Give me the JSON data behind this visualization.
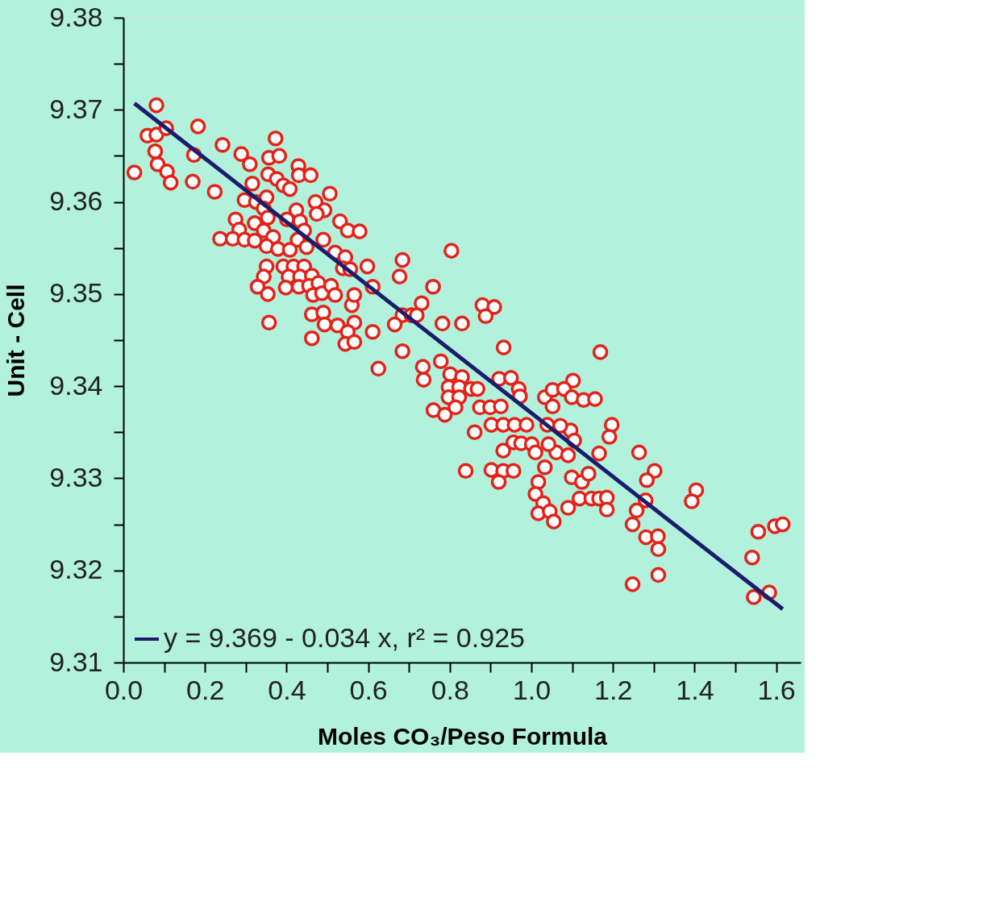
{
  "chart_data": {
    "type": "scatter",
    "xlabel": "Moles CO₃/Peso Formula",
    "ylabel": "Unit - Cell",
    "xlim": [
      0,
      1.66
    ],
    "ylim": [
      9.31,
      9.38
    ],
    "xticks": [
      {
        "value": 0,
        "label": "0.0"
      },
      {
        "value": 0.1,
        "label": null
      },
      0.2,
      {
        "value": 0.3,
        "label": null
      },
      0.4,
      {
        "value": 0.5,
        "label": null
      },
      0.6,
      {
        "value": 0.7,
        "label": null
      },
      0.8,
      {
        "value": 0.9,
        "label": null
      },
      {
        "value": 1,
        "label": "1.0"
      },
      {
        "value": 1.1,
        "label": null
      },
      1.2,
      {
        "value": 1.3,
        "label": null
      },
      1.4,
      {
        "value": 1.5,
        "label": null
      },
      1.6
    ],
    "yticks": [
      9.31,
      {
        "value": 9.315,
        "label": null
      },
      9.32,
      {
        "value": 9.325,
        "label": null
      },
      9.33,
      {
        "value": 9.335,
        "label": null
      },
      9.34,
      {
        "value": 9.345,
        "label": null
      },
      9.35,
      {
        "value": 9.355,
        "label": null
      },
      9.36,
      {
        "value": 9.365,
        "label": null
      },
      9.37,
      {
        "value": 9.375,
        "label": null
      },
      9.38
    ],
    "grid": false,
    "legend": "bottom left",
    "series": [
      {
        "marker": "circle",
        "color": "#e32219",
        "x": [
          0.081,
          0.027,
          0.059,
          0.081,
          0.105,
          0.078,
          0.084,
          0.107,
          0.116,
          0.17,
          0.173,
          0.183,
          0.243,
          0.224,
          0.289,
          0.31,
          0.316,
          0.373,
          0.357,
          0.382,
          0.355,
          0.376,
          0.392,
          0.408,
          0.429,
          0.43,
          0.459,
          0.506,
          0.297,
          0.325,
          0.351,
          0.344,
          0.275,
          0.284,
          0.237,
          0.268,
          0.297,
          0.322,
          0.322,
          0.344,
          0.354,
          0.367,
          0.351,
          0.379,
          0.408,
          0.401,
          0.424,
          0.433,
          0.443,
          0.427,
          0.449,
          0.471,
          0.493,
          0.474,
          0.531,
          0.55,
          0.579,
          0.49,
          0.519,
          0.544,
          0.538,
          0.556,
          0.598,
          0.611,
          0.351,
          0.344,
          0.329,
          0.354,
          0.392,
          0.417,
          0.443,
          0.405,
          0.433,
          0.462,
          0.398,
          0.43,
          0.455,
          0.478,
          0.465,
          0.487,
          0.509,
          0.519,
          0.56,
          0.566,
          0.357,
          0.462,
          0.49,
          0.493,
          0.525,
          0.566,
          0.55,
          0.462,
          0.544,
          0.566,
          0.611,
          0.804,
          0.684,
          0.677,
          0.759,
          0.731,
          0.684,
          0.706,
          0.719,
          0.88,
          0.909,
          0.888,
          0.782,
          0.83,
          0.665,
          0.684,
          0.932,
          0.625,
          0.734,
          0.736,
          0.778,
          0.801,
          0.83,
          0.797,
          0.823,
          0.852,
          0.868,
          0.797,
          0.823,
          0.76,
          0.788,
          0.814,
          0.874,
          0.899,
          0.925,
          0.921,
          0.95,
          0.969,
          0.972,
          1.033,
          1.052,
          1.052,
          0.902,
          0.931,
          0.959,
          0.988,
          0.861,
          1.039,
          1.169,
          1.102,
          1.08,
          1.099,
          1.128,
          1.156,
          1.197,
          1.191,
          1.096,
          1.105,
          1.071,
          1.061,
          1.09,
          1.166,
          1.264,
          1.302,
          1.283,
          1.28,
          1.258,
          1.248,
          0.839,
          0.902,
          0.931,
          0.956,
          0.92,
          1.033,
          1.017,
          1.01,
          1.029,
          1.017,
          1.045,
          1.055,
          1.099,
          1.124,
          1.14,
          1.09,
          1.118,
          1.147,
          1.166,
          1.185,
          1.185,
          0.956,
          0.975,
          1.001,
          1.01,
          0.931,
          1.042,
          1.281,
          1.31,
          1.311,
          1.311,
          1.248,
          1.404,
          1.393,
          1.556,
          1.597,
          1.616,
          1.541,
          1.545,
          1.583
        ],
        "values": [
          9.3705,
          9.3632,
          9.3672,
          9.3673,
          9.368,
          9.3655,
          9.3641,
          9.3633,
          9.3621,
          9.3622,
          9.3651,
          9.3682,
          9.3662,
          9.3611,
          9.3652,
          9.3641,
          9.362,
          9.3669,
          9.3648,
          9.365,
          9.363,
          9.3625,
          9.3618,
          9.3614,
          9.3639,
          9.3629,
          9.3629,
          9.3609,
          9.3602,
          9.36,
          9.3605,
          9.3593,
          9.3581,
          9.357,
          9.356,
          9.356,
          9.3559,
          9.3558,
          9.3577,
          9.3569,
          9.3583,
          9.3562,
          9.3552,
          9.3549,
          9.3548,
          9.3581,
          9.3591,
          9.3579,
          9.3569,
          9.3559,
          9.3551,
          9.36,
          9.3591,
          9.3587,
          9.3579,
          9.3569,
          9.3568,
          9.3559,
          9.3545,
          9.354,
          9.3528,
          9.3527,
          9.353,
          9.3508,
          9.353,
          9.3519,
          9.3508,
          9.35,
          9.353,
          9.353,
          9.353,
          9.3519,
          9.3519,
          9.352,
          9.3507,
          9.3508,
          9.3509,
          9.3512,
          9.3499,
          9.3501,
          9.3509,
          9.3499,
          9.3488,
          9.3499,
          9.3469,
          9.3478,
          9.348,
          9.3467,
          9.3466,
          9.3469,
          9.3459,
          9.3452,
          9.3446,
          9.3448,
          9.3459,
          9.3547,
          9.3537,
          9.3519,
          9.3508,
          9.349,
          9.3477,
          9.3477,
          9.3477,
          9.3488,
          9.3486,
          9.3476,
          9.3468,
          9.3468,
          9.3467,
          9.3438,
          9.3442,
          9.3419,
          9.3421,
          9.3407,
          9.3427,
          9.3413,
          9.341,
          9.3399,
          9.3399,
          9.3397,
          9.3397,
          9.3388,
          9.3388,
          9.3374,
          9.3369,
          9.3377,
          9.3377,
          9.3377,
          9.3378,
          9.3408,
          9.3409,
          9.3397,
          9.3389,
          9.3388,
          9.3396,
          9.3378,
          9.3358,
          9.3358,
          9.3358,
          9.3358,
          9.335,
          9.3358,
          9.3437,
          9.3406,
          9.3397,
          9.3388,
          9.3385,
          9.3386,
          9.3358,
          9.3345,
          9.3352,
          9.3341,
          9.3357,
          9.3328,
          9.3325,
          9.3327,
          9.3328,
          9.3308,
          9.3298,
          9.3276,
          9.3265,
          9.325,
          9.3308,
          9.3309,
          9.3308,
          9.3308,
          9.3296,
          9.3312,
          9.3296,
          9.3283,
          9.3273,
          9.3262,
          9.3264,
          9.3253,
          9.3301,
          9.3296,
          9.3305,
          9.3268,
          9.3278,
          9.3278,
          9.3278,
          9.3279,
          9.3266,
          9.3339,
          9.3338,
          9.3337,
          9.3328,
          9.333,
          9.3337,
          9.3236,
          9.3237,
          9.3223,
          9.3195,
          9.3185,
          9.3287,
          9.3275,
          9.3242,
          9.3248,
          9.325,
          9.3214,
          9.3171,
          9.3176
        ]
      },
      {
        "type": "line",
        "name": "y = 9.369 - 0.034 x, r² = 0.925",
        "color": "#1c1c6b",
        "line_style": "solid",
        "marker": "none",
        "x": [
          0.027,
          1.616
        ],
        "values": [
          9.3707,
          9.3158
        ]
      }
    ]
  }
}
